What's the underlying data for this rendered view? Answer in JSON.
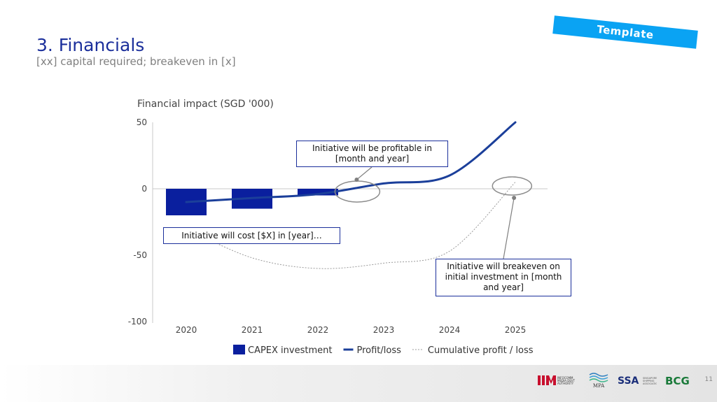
{
  "slide": {
    "title": "3. Financials",
    "subtitle": "[xx] capital required; breakeven in [x]",
    "tag": "Template",
    "page_number": "11"
  },
  "chart_data": {
    "type": "bar",
    "title": "Financial impact (SGD '000)",
    "categories": [
      "2020",
      "2021",
      "2022",
      "2023",
      "2024",
      "2025"
    ],
    "ylim": [
      -100,
      50
    ],
    "yticks": [
      50,
      0,
      -50,
      -100
    ],
    "grid": false,
    "legend_position": "bottom",
    "series": [
      {
        "name": "CAPEX investment",
        "kind": "bar",
        "color": "#0a1f9e",
        "values": [
          -20,
          -15,
          -5,
          null,
          null,
          null
        ]
      },
      {
        "name": "Profit/loss",
        "kind": "line",
        "color": "#1b3f9a",
        "values": [
          -10,
          -7,
          -4,
          4,
          10,
          50
        ]
      },
      {
        "name": "Cumulative profit / loss",
        "kind": "dotted-line",
        "color": "#9a9a9a",
        "values": [
          -30,
          -52,
          -60,
          -56,
          -47,
          5
        ]
      }
    ],
    "annotations": [
      {
        "id": "profitable",
        "text": "Initiative will be profitable in [month and year]"
      },
      {
        "id": "cost",
        "text": "Initiative will cost [$X] in [year]…"
      },
      {
        "id": "breakeven",
        "text": "Initiative will breakeven on initial investment in [month and year]"
      }
    ]
  },
  "colors": {
    "accent": "#1b2f9b",
    "tag": "#0aa3f3",
    "bar": "#0a1f9e",
    "line": "#1b3f9a"
  },
  "logos": [
    {
      "name": "IMDA",
      "text": "INFOCOMM MEDIA DEVELOPMENT AUTHORITY"
    },
    {
      "name": "MPA",
      "text": "MPA"
    },
    {
      "name": "SSA",
      "text": "SSA"
    },
    {
      "name": "BCG",
      "text": "BCG"
    }
  ]
}
